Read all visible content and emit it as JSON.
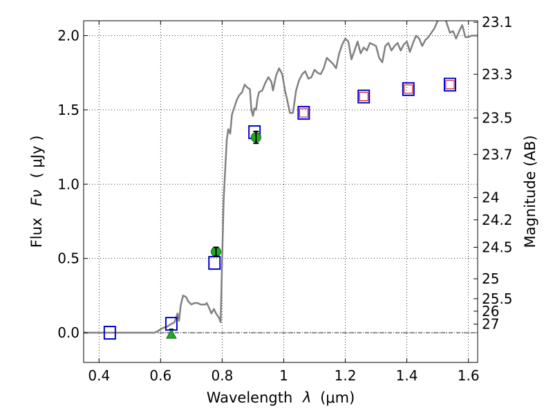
{
  "chart_data": {
    "type": "scatter",
    "xlabel": "Wavelength",
    "xlabel_symbol": "λ",
    "xlabel_unit": "(μm)",
    "ylabel": "Flux",
    "ylabel_symbol": "Fν",
    "ylabel_unit": "( μJy )",
    "y2label": "Magnitude (AB)",
    "xlim": [
      0.35,
      1.63
    ],
    "ylim": [
      -0.2,
      2.1
    ],
    "grid": true,
    "grid_style": "dotted",
    "x_ticks": [
      0.4,
      0.6,
      0.8,
      1.0,
      1.2,
      1.4,
      1.6
    ],
    "x_tick_labels": [
      "0.4",
      "0.6",
      "0.8",
      "1",
      "1.2",
      "1.4",
      "1.6"
    ],
    "y_ticks": [
      0.0,
      0.5,
      1.0,
      1.5,
      2.0
    ],
    "y_tick_labels": [
      "0.0",
      "0.5",
      "1.0",
      "1.5",
      "2.0"
    ],
    "magnitude_ticks": [
      {
        "label": "23.1",
        "flux": 2.09
      },
      {
        "label": "23.3",
        "flux": 1.74
      },
      {
        "label": "23.5",
        "flux": 1.445
      },
      {
        "label": "23.7",
        "flux": 1.2
      },
      {
        "label": "24",
        "flux": 0.91
      },
      {
        "label": "24.2",
        "flux": 0.76
      },
      {
        "label": "24.5",
        "flux": 0.575
      },
      {
        "label": "25",
        "flux": 0.363
      },
      {
        "label": "25.5",
        "flux": 0.229
      },
      {
        "label": "26",
        "flux": 0.145
      },
      {
        "label": "27",
        "flux": 0.058
      }
    ],
    "series": [
      {
        "type": "line",
        "color": "#808080",
        "points": [
          [
            0.35,
            0.0
          ],
          [
            0.55,
            0.0
          ],
          [
            0.58,
            0.0
          ],
          [
            0.59,
            0.01
          ],
          [
            0.605,
            0.03
          ],
          [
            0.62,
            0.04
          ],
          [
            0.635,
            0.06
          ],
          [
            0.645,
            0.07
          ],
          [
            0.655,
            0.13
          ],
          [
            0.66,
            0.08
          ],
          [
            0.665,
            0.18
          ],
          [
            0.673,
            0.25
          ],
          [
            0.683,
            0.24
          ],
          [
            0.69,
            0.21
          ],
          [
            0.7,
            0.19
          ],
          [
            0.71,
            0.2
          ],
          [
            0.72,
            0.2
          ],
          [
            0.73,
            0.19
          ],
          [
            0.745,
            0.19
          ],
          [
            0.75,
            0.2
          ],
          [
            0.757,
            0.17
          ],
          [
            0.765,
            0.13
          ],
          [
            0.773,
            0.16
          ],
          [
            0.78,
            0.13
          ],
          [
            0.79,
            0.1
          ],
          [
            0.795,
            0.07
          ],
          [
            0.8,
            0.5
          ],
          [
            0.805,
            0.9
          ],
          [
            0.81,
            1.1
          ],
          [
            0.815,
            1.3
          ],
          [
            0.82,
            1.37
          ],
          [
            0.826,
            1.34
          ],
          [
            0.832,
            1.47
          ],
          [
            0.84,
            1.52
          ],
          [
            0.848,
            1.57
          ],
          [
            0.856,
            1.6
          ],
          [
            0.865,
            1.62
          ],
          [
            0.873,
            1.67
          ],
          [
            0.882,
            1.65
          ],
          [
            0.89,
            1.64
          ],
          [
            0.895,
            1.5
          ],
          [
            0.9,
            1.46
          ],
          [
            0.905,
            1.51
          ],
          [
            0.91,
            1.5
          ],
          [
            0.915,
            1.58
          ],
          [
            0.92,
            1.62
          ],
          [
            0.93,
            1.63
          ],
          [
            0.94,
            1.68
          ],
          [
            0.95,
            1.72
          ],
          [
            0.96,
            1.69
          ],
          [
            0.965,
            1.63
          ],
          [
            0.975,
            1.73
          ],
          [
            0.985,
            1.78
          ],
          [
            0.995,
            1.74
          ],
          [
            1.0,
            1.68
          ],
          [
            1.005,
            1.62
          ],
          [
            1.01,
            1.58
          ],
          [
            1.015,
            1.53
          ],
          [
            1.02,
            1.48
          ],
          [
            1.03,
            1.48
          ],
          [
            1.04,
            1.63
          ],
          [
            1.05,
            1.7
          ],
          [
            1.06,
            1.74
          ],
          [
            1.07,
            1.76
          ],
          [
            1.08,
            1.71
          ],
          [
            1.09,
            1.72
          ],
          [
            1.1,
            1.77
          ],
          [
            1.11,
            1.75
          ],
          [
            1.12,
            1.74
          ],
          [
            1.13,
            1.78
          ],
          [
            1.14,
            1.85
          ],
          [
            1.15,
            1.83
          ],
          [
            1.16,
            1.81
          ],
          [
            1.17,
            1.78
          ],
          [
            1.18,
            1.88
          ],
          [
            1.19,
            1.94
          ],
          [
            1.2,
            1.98
          ],
          [
            1.21,
            1.96
          ],
          [
            1.22,
            1.84
          ],
          [
            1.23,
            1.9
          ],
          [
            1.24,
            1.96
          ],
          [
            1.25,
            1.88
          ],
          [
            1.26,
            1.92
          ],
          [
            1.27,
            1.9
          ],
          [
            1.28,
            1.95
          ],
          [
            1.29,
            1.94
          ],
          [
            1.3,
            1.93
          ],
          [
            1.31,
            1.85
          ],
          [
            1.32,
            1.82
          ],
          [
            1.33,
            1.93
          ],
          [
            1.34,
            1.95
          ],
          [
            1.35,
            1.9
          ],
          [
            1.36,
            1.93
          ],
          [
            1.37,
            1.95
          ],
          [
            1.38,
            1.9
          ],
          [
            1.39,
            1.94
          ],
          [
            1.4,
            1.96
          ],
          [
            1.41,
            1.89
          ],
          [
            1.42,
            1.95
          ],
          [
            1.43,
            2.0
          ],
          [
            1.44,
            1.98
          ],
          [
            1.45,
            1.93
          ],
          [
            1.46,
            1.97
          ],
          [
            1.47,
            1.99
          ],
          [
            1.48,
            2.02
          ],
          [
            1.49,
            2.05
          ],
          [
            1.5,
            2.1
          ],
          [
            1.51,
            2.12
          ],
          [
            1.52,
            2.15
          ],
          [
            1.53,
            2.08
          ],
          [
            1.54,
            2.02
          ],
          [
            1.55,
            2.03
          ],
          [
            1.56,
            1.98
          ],
          [
            1.57,
            2.03
          ],
          [
            1.58,
            2.07
          ],
          [
            1.59,
            1.99
          ],
          [
            1.6,
            1.99
          ],
          [
            1.61,
            2.0
          ],
          [
            1.63,
            2.0
          ]
        ]
      },
      {
        "type": "markers",
        "marker": "square-open",
        "color": "#0000cc",
        "points": [
          [
            0.435,
            0.0
          ],
          [
            0.635,
            0.06
          ],
          [
            0.775,
            0.47
          ],
          [
            0.905,
            1.35
          ],
          [
            1.065,
            1.48
          ],
          [
            1.26,
            1.59
          ],
          [
            1.405,
            1.64
          ],
          [
            1.54,
            1.67
          ]
        ]
      },
      {
        "type": "markers",
        "marker": "square-open-small",
        "color": "#cc0000",
        "points": [
          [
            1.065,
            1.48
          ],
          [
            1.26,
            1.59
          ],
          [
            1.405,
            1.64
          ],
          [
            1.54,
            1.67
          ]
        ]
      },
      {
        "type": "markers",
        "marker": "circle",
        "color": "#22aa22",
        "points": [
          [
            0.78,
            0.545
          ],
          [
            0.91,
            1.315
          ]
        ],
        "errors": [
          0.03,
          0.04
        ]
      },
      {
        "type": "markers",
        "marker": "triangle",
        "color": "#22aa22",
        "points": [
          [
            0.635,
            -0.005
          ]
        ]
      }
    ]
  }
}
